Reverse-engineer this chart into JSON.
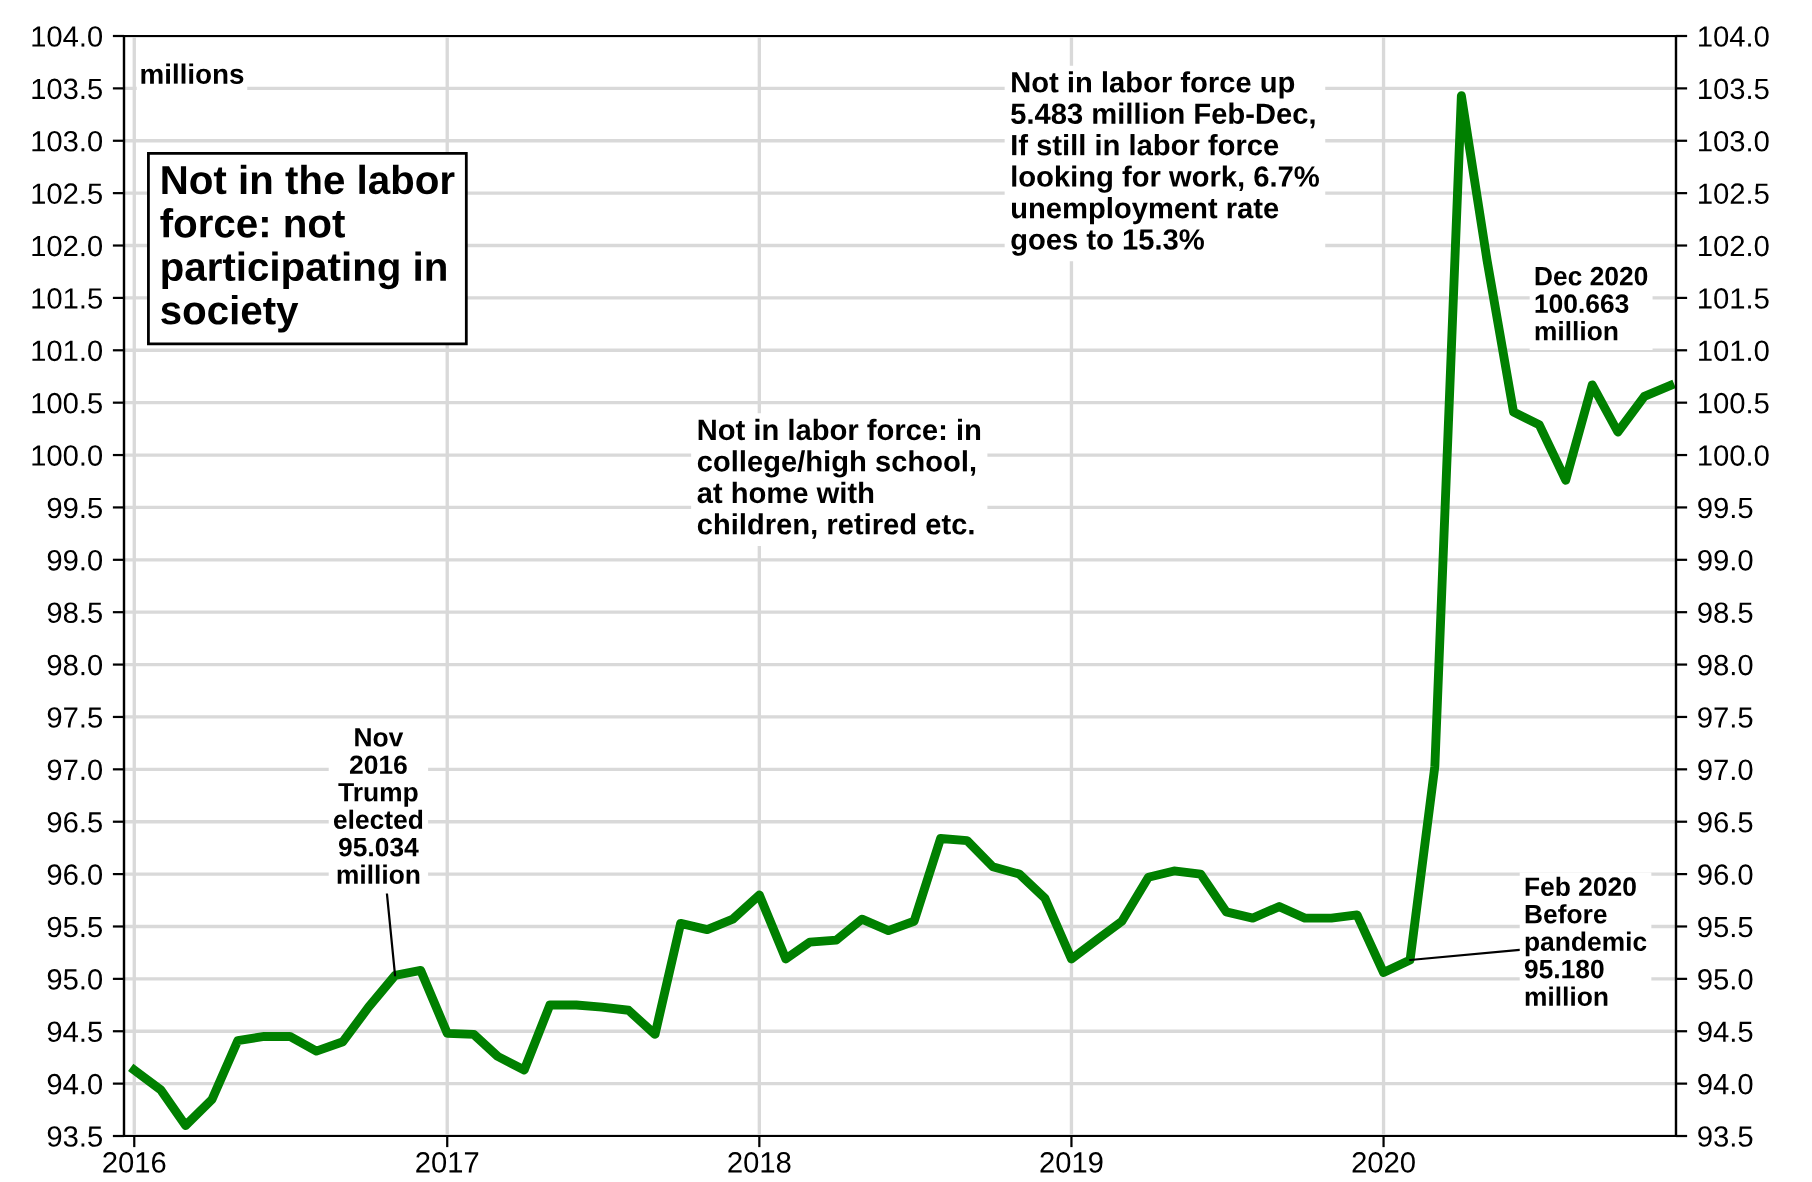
{
  "chart_data": {
    "type": "line",
    "ylabel": "millions",
    "x": [
      "2016-01",
      "2016-02",
      "2016-03",
      "2016-04",
      "2016-05",
      "2016-06",
      "2016-07",
      "2016-08",
      "2016-09",
      "2016-10",
      "2016-11",
      "2016-12",
      "2017-01",
      "2017-02",
      "2017-03",
      "2017-04",
      "2017-05",
      "2017-06",
      "2017-07",
      "2017-08",
      "2017-09",
      "2017-10",
      "2017-11",
      "2017-12",
      "2018-01",
      "2018-02",
      "2018-03",
      "2018-04",
      "2018-05",
      "2018-06",
      "2018-07",
      "2018-08",
      "2018-09",
      "2018-10",
      "2018-11",
      "2018-12",
      "2019-01",
      "2019-02",
      "2019-03",
      "2019-04",
      "2019-05",
      "2019-06",
      "2019-07",
      "2019-08",
      "2019-09",
      "2019-10",
      "2019-11",
      "2019-12",
      "2020-01",
      "2020-02",
      "2020-03",
      "2020-04",
      "2020-05",
      "2020-06",
      "2020-07",
      "2020-08",
      "2020-09",
      "2020-10",
      "2020-11",
      "2020-12"
    ],
    "series": [
      {
        "color": "#008000",
        "values": [
          94.13,
          93.94,
          93.6,
          93.85,
          94.41,
          94.45,
          94.45,
          94.31,
          94.4,
          94.73,
          95.034,
          95.08,
          94.48,
          94.47,
          94.26,
          94.13,
          94.75,
          94.75,
          94.73,
          94.7,
          94.47,
          95.53,
          95.47,
          95.57,
          95.8,
          95.19,
          95.35,
          95.37,
          95.57,
          95.46,
          95.55,
          96.34,
          96.32,
          96.07,
          96.0,
          95.77,
          95.19,
          95.38,
          95.55,
          95.97,
          96.03,
          96.0,
          95.64,
          95.58,
          95.69,
          95.58,
          95.58,
          95.61,
          95.06,
          95.18,
          97.03,
          103.43,
          101.86,
          100.41,
          100.29,
          99.76,
          100.67,
          100.22,
          100.56,
          100.663
        ]
      }
    ],
    "xlim": [
      "2015-12-20",
      "2020-12-08"
    ],
    "xticks": [
      {
        "value": "2016-01-01",
        "label": "2016"
      },
      {
        "value": "2017-01-01",
        "label": "2017"
      },
      {
        "value": "2018-01-01",
        "label": "2018"
      },
      {
        "value": "2019-01-01",
        "label": "2019"
      },
      {
        "value": "2020-01-01",
        "label": "2020"
      }
    ],
    "ylim": [
      93.5,
      104.0
    ],
    "yticks": [
      93.5,
      {
        "value": 94,
        "label": "94.0"
      },
      94.5,
      {
        "value": 95,
        "label": "95.0"
      },
      95.5,
      {
        "value": 96,
        "label": "96.0"
      },
      96.5,
      {
        "value": 97,
        "label": "97.0"
      },
      97.5,
      {
        "value": 98,
        "label": "98.0"
      },
      98.5,
      {
        "value": 99,
        "label": "99.0"
      },
      99.5,
      {
        "value": 100,
        "label": "100.0"
      },
      100.5,
      {
        "value": 101,
        "label": "101.0"
      },
      101.5,
      {
        "value": 102,
        "label": "102.0"
      },
      102.5,
      {
        "value": 103,
        "label": "103.0"
      },
      103.5,
      {
        "value": 104,
        "label": "104.0"
      }
    ],
    "y2lim": [
      93.5,
      104.0
    ],
    "y2ticks": [
      93.5,
      {
        "value": 94,
        "label": "94.0"
      },
      94.5,
      {
        "value": 95,
        "label": "95.0"
      },
      95.5,
      {
        "value": 96,
        "label": "96.0"
      },
      96.5,
      {
        "value": 97,
        "label": "97.0"
      },
      97.5,
      {
        "value": 98,
        "label": "98.0"
      },
      98.5,
      {
        "value": 99,
        "label": "99.0"
      },
      99.5,
      {
        "value": 100,
        "label": "100.0"
      },
      100.5,
      {
        "value": 101,
        "label": "101.0"
      },
      101.5,
      {
        "value": 102,
        "label": "102.0"
      },
      102.5,
      {
        "value": 103,
        "label": "103.0"
      },
      103.5,
      {
        "value": 104,
        "label": "104.0"
      }
    ],
    "grid": true,
    "marker": "none",
    "line_style": "solid",
    "annotations": [
      "Not in the labor\nforce: not\nparticipating in\nsociety",
      "Not in labor force: in\ncollege/high school,\nat home with\nchildren, retired etc.",
      "Not in labor force up\n5.483 million Feb-Dec,\nIf still in labor force\nlooking for work, 6.7%\nunemployment rate\ngoes to 15.3%",
      {
        "text": "Nov\n2016\nTrump\nelected\n95.034\nmillion",
        "x": "2016-11",
        "y": 95.034
      },
      {
        "text": "Feb 2020\nBefore\npandemic\n95.180\nmillion",
        "x": "2020-02",
        "y": 95.18
      },
      {
        "text": "Dec 2020\n100.663\nmillion",
        "x": "2020-12",
        "y": 100.663
      }
    ]
  }
}
